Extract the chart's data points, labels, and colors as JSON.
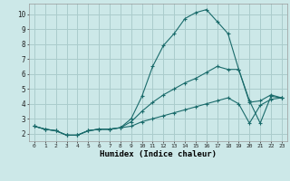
{
  "title": "",
  "xlabel": "Humidex (Indice chaleur)",
  "ylabel": "",
  "background_color": "#cce8e8",
  "grid_color": "#aacccc",
  "line_color": "#1a6b6b",
  "xlim": [
    -0.5,
    23.5
  ],
  "ylim": [
    1.5,
    10.7
  ],
  "yticks": [
    2,
    3,
    4,
    5,
    6,
    7,
    8,
    9,
    10
  ],
  "xticks": [
    0,
    1,
    2,
    3,
    4,
    5,
    6,
    7,
    8,
    9,
    10,
    11,
    12,
    13,
    14,
    15,
    16,
    17,
    18,
    19,
    20,
    21,
    22,
    23
  ],
  "line1_x": [
    0,
    1,
    2,
    3,
    4,
    5,
    6,
    7,
    8,
    9,
    10,
    11,
    12,
    13,
    14,
    15,
    16,
    17,
    18,
    19,
    20,
    21,
    22,
    23
  ],
  "line1_y": [
    2.5,
    2.3,
    2.2,
    1.9,
    1.9,
    2.2,
    2.3,
    2.3,
    2.4,
    3.0,
    4.5,
    6.5,
    7.9,
    8.7,
    9.7,
    10.1,
    10.3,
    9.5,
    8.7,
    6.3,
    4.2,
    2.7,
    4.5,
    4.4
  ],
  "line2_x": [
    0,
    1,
    2,
    3,
    4,
    5,
    6,
    7,
    8,
    9,
    10,
    11,
    12,
    13,
    14,
    15,
    16,
    17,
    18,
    19,
    20,
    21,
    22,
    23
  ],
  "line2_y": [
    2.5,
    2.3,
    2.2,
    1.9,
    1.9,
    2.2,
    2.3,
    2.3,
    2.4,
    2.8,
    3.5,
    4.1,
    4.6,
    5.0,
    5.4,
    5.7,
    6.1,
    6.5,
    6.3,
    6.3,
    4.1,
    4.2,
    4.6,
    4.4
  ],
  "line3_x": [
    0,
    1,
    2,
    3,
    4,
    5,
    6,
    7,
    8,
    9,
    10,
    11,
    12,
    13,
    14,
    15,
    16,
    17,
    18,
    19,
    20,
    21,
    22,
    23
  ],
  "line3_y": [
    2.5,
    2.3,
    2.2,
    1.9,
    1.9,
    2.2,
    2.3,
    2.3,
    2.4,
    2.5,
    2.8,
    3.0,
    3.2,
    3.4,
    3.6,
    3.8,
    4.0,
    4.2,
    4.4,
    4.0,
    2.7,
    3.9,
    4.3,
    4.4
  ]
}
